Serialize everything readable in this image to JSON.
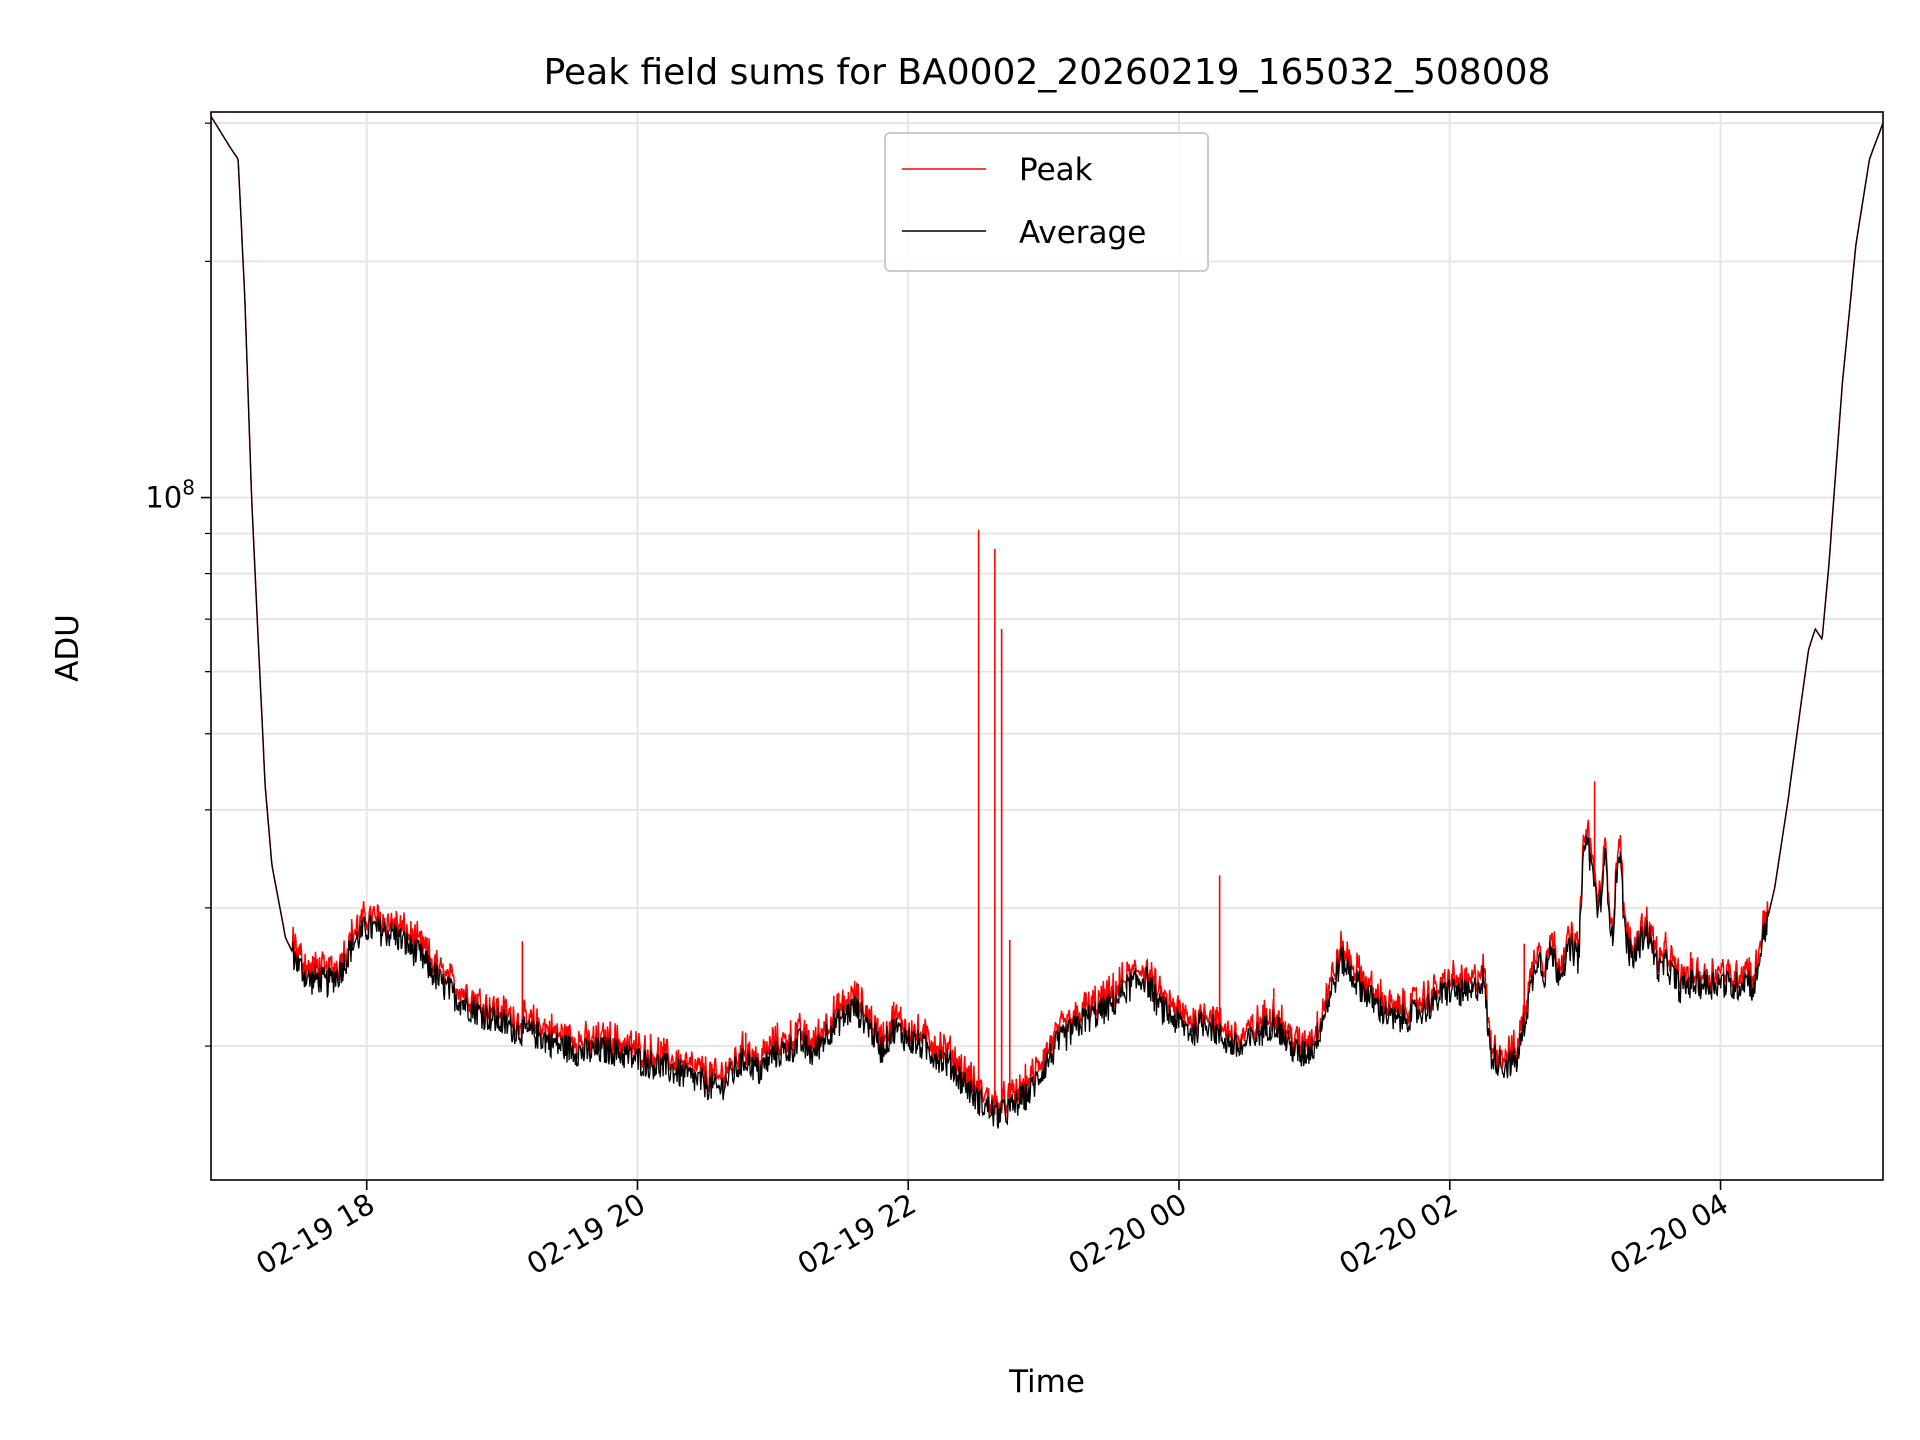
{
  "chart_data": {
    "type": "line",
    "title": "Peak field sums for BA0002_20260219_165032_508008",
    "xlabel": "Time",
    "ylabel": "ADU",
    "yscale": "log",
    "ylim": [
      13500000,
      310000000
    ],
    "xlim_hours": [
      -1.15,
      11.2
    ],
    "x_unit": "hours after 2026-02-19 18:00",
    "y_major_ticks": [
      {
        "value": 100000000,
        "base": "10",
        "exp": "8"
      }
    ],
    "y_minor_ticks": [
      20000000,
      30000000,
      40000000,
      50000000,
      60000000,
      70000000,
      80000000,
      90000000,
      200000000,
      300000000
    ],
    "x_ticks": [
      {
        "h": 0,
        "label": "02-19 18"
      },
      {
        "h": 2,
        "label": "02-19 20"
      },
      {
        "h": 4,
        "label": "02-19 22"
      },
      {
        "h": 6,
        "label": "02-20 00"
      },
      {
        "h": 8,
        "label": "02-20 02"
      },
      {
        "h": 10,
        "label": "02-20 04"
      }
    ],
    "grid": true,
    "legend": {
      "position": "top-center",
      "entries": [
        {
          "name": "Peak",
          "color": "#ff0000"
        },
        {
          "name": "Average",
          "color": "#000000"
        }
      ]
    },
    "series": [
      {
        "name": "Average",
        "color": "#000000",
        "x": [
          -1.15,
          -1.0,
          -0.95,
          -0.9,
          -0.85,
          -0.8,
          -0.75,
          -0.7,
          -0.6,
          -0.5,
          -0.45,
          -0.42,
          -0.35,
          -0.3,
          -0.2,
          -0.1,
          0.0,
          0.2,
          0.4,
          0.55,
          0.7,
          0.85,
          1.0,
          1.1,
          1.25,
          1.4,
          1.6,
          1.8,
          2.0,
          2.2,
          2.4,
          2.6,
          2.8,
          2.9,
          3.0,
          3.1,
          3.2,
          3.3,
          3.4,
          3.5,
          3.6,
          3.7,
          3.8,
          3.9,
          4.0,
          4.1,
          4.3,
          4.5,
          4.65,
          4.75,
          4.9,
          5.1,
          5.3,
          5.5,
          5.6,
          5.75,
          5.85,
          6.0,
          6.1,
          6.2,
          6.3,
          6.45,
          6.6,
          6.7,
          6.8,
          6.9,
          7.0,
          7.1,
          7.2,
          7.3,
          7.45,
          7.6,
          7.8,
          8.0,
          8.15,
          8.25,
          8.3,
          8.4,
          8.5,
          8.6,
          8.65,
          8.7,
          8.75,
          8.8,
          8.9,
          8.95,
          9.0,
          9.05,
          9.1,
          9.15,
          9.2,
          9.25,
          9.3,
          9.35,
          9.45,
          9.55,
          9.6,
          9.7,
          9.8,
          9.9,
          10.0,
          10.1,
          10.2,
          10.25,
          10.3,
          10.4,
          10.5,
          10.6,
          10.65,
          10.7,
          10.75,
          10.8,
          10.9,
          11.0,
          11.1,
          11.2
        ],
        "y": [
          306000000,
          278000000,
          270000000,
          180000000,
          100000000,
          65000000,
          43000000,
          34000000,
          27500000,
          25300000,
          24600000,
          24200000,
          24400000,
          24000000,
          24800000,
          27000000,
          28300000,
          27800000,
          26000000,
          24000000,
          22800000,
          22000000,
          21400000,
          21000000,
          20700000,
          20100000,
          19600000,
          19800000,
          19200000,
          18800000,
          18200000,
          17600000,
          19300000,
          18500000,
          19500000,
          19700000,
          20200000,
          19500000,
          20800000,
          21600000,
          22400000,
          21400000,
          19800000,
          21100000,
          20400000,
          20000000,
          19000000,
          17200000,
          16300000,
          16600000,
          17500000,
          20100000,
          21600000,
          22500000,
          23600000,
          24500000,
          22500000,
          21400000,
          20800000,
          21600000,
          20600000,
          19800000,
          20800000,
          21500000,
          20200000,
          19400000,
          20000000,
          22800000,
          25800000,
          24300000,
          22600000,
          21500000,
          22200000,
          23600000,
          23200000,
          24400000,
          19500000,
          18900000,
          19200000,
          23800000,
          26300000,
          24700000,
          26500000,
          24800000,
          26700000,
          25800000,
          37500000,
          33800000,
          29400000,
          34700000,
          27100000,
          36300000,
          27300000,
          25700000,
          28200000,
          24900000,
          25500000,
          23700000,
          24100000,
          23900000,
          24200000,
          23700000,
          24500000,
          23500000,
          26800000,
          31800000,
          41300000,
          55500000,
          64000000,
          68000000,
          66000000,
          82000000,
          140000000,
          210000000,
          270000000,
          300000000
        ]
      },
      {
        "name": "Peak",
        "color": "#ff0000",
        "spikes": [
          {
            "h": 1.15,
            "value": 27200000
          },
          {
            "h": 2.8,
            "value": 20800000
          },
          {
            "h": 4.52,
            "value": 91000000
          },
          {
            "h": 4.64,
            "value": 86000000
          },
          {
            "h": 4.69,
            "value": 68000000
          },
          {
            "h": 4.75,
            "value": 27300000
          },
          {
            "h": 6.3,
            "value": 33000000
          },
          {
            "h": 6.7,
            "value": 23700000
          },
          {
            "h": 8.55,
            "value": 27000000
          },
          {
            "h": 9.07,
            "value": 43500000
          }
        ]
      }
    ]
  }
}
